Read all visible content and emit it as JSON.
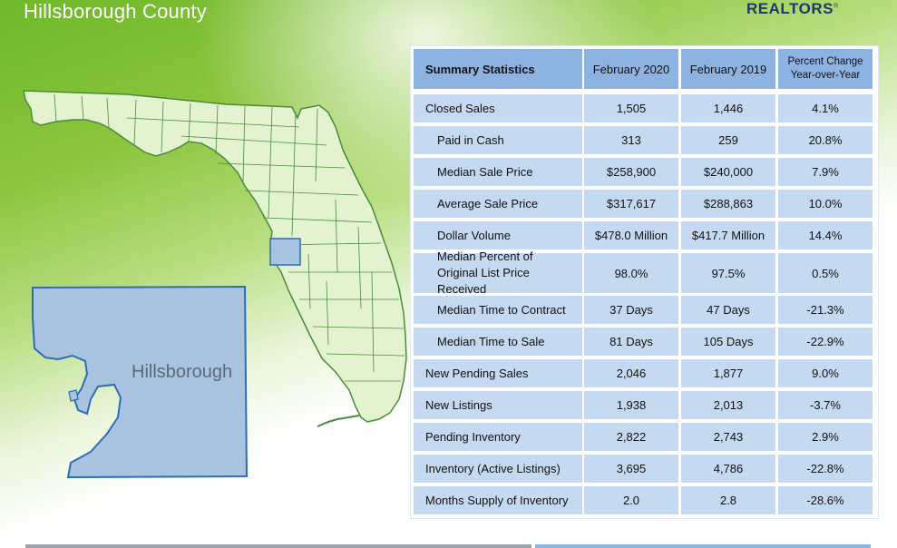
{
  "page": {
    "title": "Hillsborough County",
    "brand": "REALTORS",
    "brand_mark": "®",
    "county_label": "Hillsborough"
  },
  "colors": {
    "header_cell": "#8db3e2",
    "body_cell": "#c5d9f1",
    "map_fill": "#e3f3d0",
    "map_stroke": "#4a8a3a",
    "county_fill": "#a8c4e0",
    "county_stroke": "#2e6db4"
  },
  "table": {
    "headers": [
      "Summary Statistics",
      "February 2020",
      "February 2019",
      "Percent Change Year-over-Year"
    ],
    "rows": [
      {
        "label": "Closed Sales",
        "indent": false,
        "v2020": "1,505",
        "v2019": "1,446",
        "change": "4.1%"
      },
      {
        "label": "Paid in Cash",
        "indent": true,
        "v2020": "313",
        "v2019": "259",
        "change": "20.8%"
      },
      {
        "label": "Median Sale Price",
        "indent": true,
        "v2020": "$258,900",
        "v2019": "$240,000",
        "change": "7.9%"
      },
      {
        "label": "Average Sale Price",
        "indent": true,
        "v2020": "$317,617",
        "v2019": "$288,863",
        "change": "10.0%"
      },
      {
        "label": "Dollar Volume",
        "indent": true,
        "v2020": "$478.0 Million",
        "v2019": "$417.7 Million",
        "change": "14.4%"
      },
      {
        "label": "Median Percent of Original List Price Received",
        "indent": true,
        "v2020": "98.0%",
        "v2019": "97.5%",
        "change": "0.5%"
      },
      {
        "label": "Median Time to Contract",
        "indent": true,
        "v2020": "37 Days",
        "v2019": "47 Days",
        "change": "-21.3%"
      },
      {
        "label": "Median Time to Sale",
        "indent": true,
        "v2020": "81 Days",
        "v2019": "105 Days",
        "change": "-22.9%"
      },
      {
        "label": "New Pending Sales",
        "indent": false,
        "v2020": "2,046",
        "v2019": "1,877",
        "change": "9.0%"
      },
      {
        "label": "New Listings",
        "indent": false,
        "v2020": "1,938",
        "v2019": "2,013",
        "change": "-3.7%"
      },
      {
        "label": "Pending Inventory",
        "indent": false,
        "v2020": "2,822",
        "v2019": "2,743",
        "change": "2.9%"
      },
      {
        "label": "Inventory (Active Listings)",
        "indent": false,
        "v2020": "3,695",
        "v2019": "4,786",
        "change": "-22.8%"
      },
      {
        "label": "Months Supply of Inventory",
        "indent": false,
        "v2020": "2.0",
        "v2019": "2.8",
        "change": "-28.6%"
      }
    ]
  }
}
